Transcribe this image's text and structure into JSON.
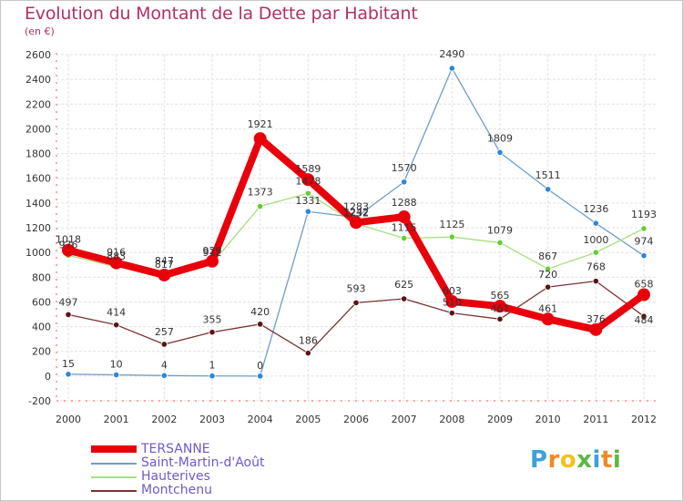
{
  "title": "Evolution du Montant de la Dette par Habitant",
  "unit_label": "(en €)",
  "logo": {
    "text": "Proxiti",
    "letters": [
      "P",
      "r",
      "o",
      "x",
      "i",
      "t",
      "i"
    ],
    "colors": [
      "#3aa2dd",
      "#f08a24",
      "#f4c21f",
      "#5bb843",
      "#3aa2dd",
      "#f08a24",
      "#5bb843"
    ]
  },
  "chart_data": {
    "type": "line",
    "title": "Evolution du Montant de la Dette par Habitant",
    "ylabel": "(en €)",
    "xlabel": "",
    "categories": [
      "2000",
      "2001",
      "2002",
      "2003",
      "2004",
      "2005",
      "2006",
      "2007",
      "2008",
      "2009",
      "2010",
      "2011",
      "2012"
    ],
    "yticks": [
      -200,
      0,
      200,
      400,
      600,
      800,
      1000,
      1200,
      1400,
      1600,
      1800,
      2000,
      2200,
      2400,
      2600
    ],
    "ylim": [
      -200,
      2600
    ],
    "grid": true,
    "series": [
      {
        "name": "TERSANNE",
        "color": "#e8000b",
        "marker": "#e8000b",
        "width": "thick",
        "values": [
          1018,
          916,
          817,
          929,
          1921,
          1589,
          1242,
          1288,
          603,
          565,
          461,
          376,
          658
        ],
        "labels": [
          "1018",
          "916",
          "817",
          "929",
          "1921",
          "1589",
          "1242",
          "1288",
          "603",
          "565",
          "461",
          "376",
          "658"
        ]
      },
      {
        "name": "Saint-Martin-d'Août",
        "color": "#6f9ec7",
        "marker": "#2f86d8",
        "width": "thin",
        "values": [
          15,
          10,
          4,
          1,
          0,
          1331,
          1283,
          1570,
          2490,
          1809,
          1511,
          1236,
          974
        ],
        "labels": [
          "15",
          "10",
          "4",
          "1",
          "0",
          "1331",
          "1283",
          "1570",
          "2490",
          "1809",
          "1511",
          "1236",
          "974"
        ]
      },
      {
        "name": "Hauterives",
        "color": "#a8de80",
        "marker": "#66cc33",
        "width": "thin",
        "values": [
          976,
          883,
          847,
          912,
          1373,
          1478,
          1232,
          1115,
          1125,
          1079,
          867,
          1000,
          1193
        ],
        "labels": [
          "976",
          "883",
          "847",
          "912",
          "1373",
          "1478",
          "1232",
          "1115",
          "1125",
          "1079",
          "867",
          "1000",
          "1193"
        ]
      },
      {
        "name": "Montchenu",
        "color": "#7a3232",
        "marker": "#5a1414",
        "width": "thin",
        "values": [
          497,
          414,
          257,
          355,
          420,
          186,
          593,
          625,
          510,
          461,
          720,
          768,
          484
        ],
        "labels": [
          "497",
          "414",
          "257",
          "355",
          "420",
          "186",
          "593",
          "625",
          "510",
          "461",
          "720",
          "768",
          "484"
        ]
      }
    ]
  }
}
